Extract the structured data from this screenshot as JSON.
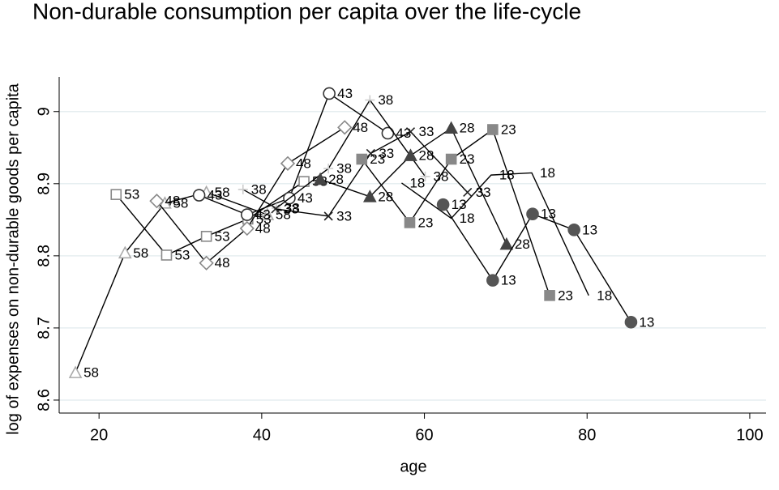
{
  "chart_data": {
    "type": "line",
    "title": "Non-durable consumption per capita over the life-cycle",
    "x_label": "age",
    "y_label": "log of expenses on non-durable goods per capita",
    "xlim": [
      15.1,
      102
    ],
    "ylim": [
      8.582,
      9.048
    ],
    "xticks": [
      20,
      40,
      60,
      80,
      100
    ],
    "yticks": [
      8.6,
      8.7,
      8.8,
      8.9,
      9
    ],
    "grid": true,
    "series": [
      {
        "name": "58",
        "color": "#aaaaaa",
        "marker": "triangle",
        "filled": false,
        "x": [
          17.1,
          23.2,
          28.1,
          33.2,
          40.7
        ],
        "values": [
          8.638,
          8.804,
          8.873,
          8.888,
          8.857
        ]
      },
      {
        "name": "53",
        "color": "#888888",
        "marker": "square",
        "filled": false,
        "x": [
          22.1,
          28.3,
          33.2,
          38.3,
          45.2
        ],
        "values": [
          8.885,
          8.801,
          8.827,
          8.851,
          8.903
        ]
      },
      {
        "name": "48",
        "color": "#888888",
        "marker": "diamond",
        "filled": false,
        "x": [
          27.1,
          33.2,
          38.2,
          43.2,
          50.2
        ],
        "values": [
          8.876,
          8.79,
          8.838,
          8.928,
          8.978
        ]
      },
      {
        "name": "43",
        "color": "#333333",
        "marker": "circle",
        "filled": false,
        "x": [
          32.3,
          38.2,
          43.4,
          48.3,
          55.5
        ],
        "values": [
          8.884,
          8.857,
          8.88,
          9.025,
          8.97
        ]
      },
      {
        "name": "38",
        "color": "#cccccc",
        "marker": "plus",
        "filled": false,
        "x": [
          37.7,
          41.8,
          48.2,
          53.3,
          60.1
        ],
        "values": [
          8.892,
          8.866,
          8.921,
          9.016,
          8.91
        ]
      },
      {
        "name": "33",
        "color": "#222222",
        "marker": "x",
        "filled": false,
        "x": [
          41.7,
          48.2,
          53.4,
          58.3,
          65.3
        ],
        "values": [
          8.865,
          8.855,
          8.942,
          8.972,
          8.888
        ]
      },
      {
        "name": "28",
        "color": "#444444",
        "marker": "triangle",
        "filled": true,
        "x": [
          47.2,
          53.3,
          58.3,
          63.3,
          70.1
        ],
        "values": [
          8.906,
          8.882,
          8.939,
          8.977,
          8.816
        ]
      },
      {
        "name": "23",
        "color": "#888888",
        "marker": "square",
        "filled": true,
        "x": [
          52.3,
          58.2,
          63.3,
          68.4,
          75.4
        ],
        "values": [
          8.934,
          8.846,
          8.934,
          8.975,
          8.745
        ]
      },
      {
        "name": "18",
        "color": "#000000",
        "marker": "none",
        "filled": false,
        "x": [
          57.2,
          63.3,
          68.2,
          73.2,
          80.2
        ],
        "values": [
          8.901,
          8.852,
          8.912,
          8.915,
          8.745
        ]
      },
      {
        "name": "13",
        "color": "#555555",
        "marker": "circle",
        "filled": true,
        "x": [
          62.3,
          68.4,
          73.3,
          78.4,
          85.4
        ],
        "values": [
          8.871,
          8.766,
          8.858,
          8.836,
          8.708
        ]
      }
    ]
  }
}
